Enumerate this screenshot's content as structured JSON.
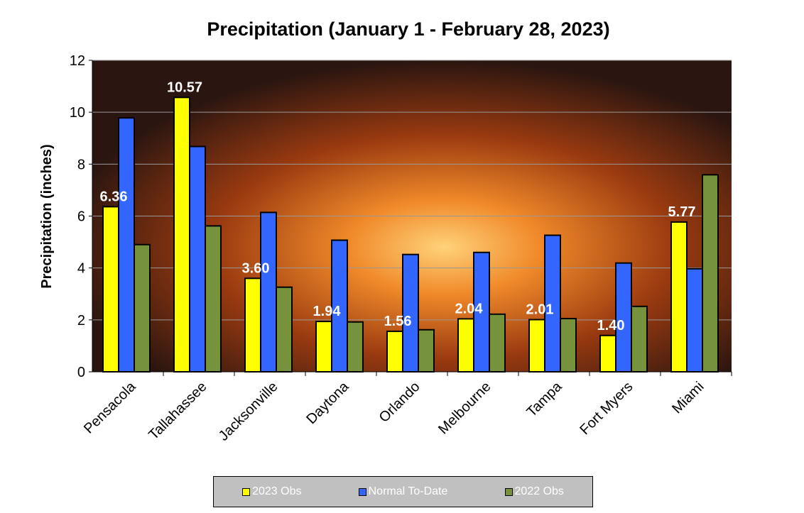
{
  "chart_data": {
    "type": "bar",
    "title": "Precipitation  (January 1 - February 28, 2023)",
    "xlabel": "",
    "ylabel": "Precipitation (inches)",
    "ylim": [
      0,
      12
    ],
    "yticks": [
      "0",
      "2",
      "4",
      "6",
      "8",
      "10",
      "12"
    ],
    "grid": true,
    "legend_position": "bottom",
    "categories": [
      "Pensacola",
      "Tallahassee",
      "Jacksonville",
      "Daytona",
      "Orlando",
      "Melbourne",
      "Tampa",
      "Fort Myers",
      "Miami"
    ],
    "series": [
      {
        "name": "2023 Obs",
        "color": "#ffff00",
        "values": [
          6.36,
          10.57,
          3.6,
          1.94,
          1.56,
          2.04,
          2.01,
          1.4,
          5.77
        ],
        "labels": [
          "6.36",
          "10.57",
          "3.60",
          "1.94",
          "1.56",
          "2.04",
          "2.01",
          "1.40",
          "5.77"
        ]
      },
      {
        "name": "Normal To-Date",
        "color": "#3366ff",
        "values": [
          9.78,
          8.68,
          6.14,
          5.07,
          4.52,
          4.6,
          5.26,
          4.19,
          3.97
        ]
      },
      {
        "name": "2022 Obs",
        "color": "#76923c",
        "values": [
          4.9,
          5.62,
          3.26,
          1.92,
          1.62,
          2.22,
          2.05,
          2.52,
          7.59
        ]
      }
    ]
  }
}
